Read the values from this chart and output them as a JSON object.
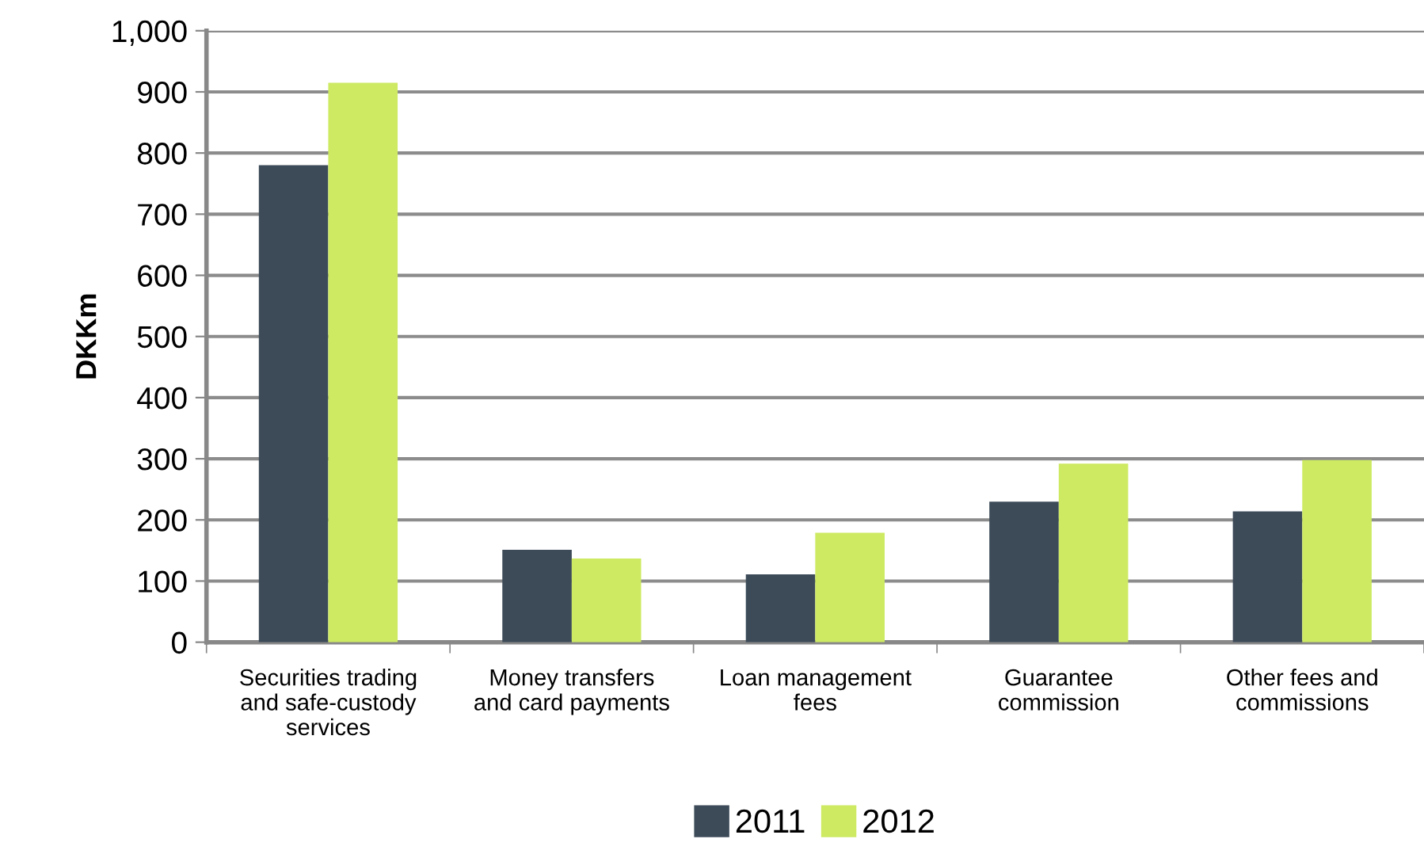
{
  "chart_data": {
    "type": "bar",
    "ylabel": "DKKm",
    "categories": [
      "Securities trading\nand safe-custody\nservices",
      "Money transfers\nand card payments",
      "Loan management\nfees",
      "Guarantee\ncommission",
      "Other fees and\ncommissions"
    ],
    "series": [
      {
        "name": "2011",
        "color": "#3d4b59",
        "values": [
          780,
          151,
          111,
          230,
          214
        ]
      },
      {
        "name": "2012",
        "color": "#cdea62",
        "values": [
          915,
          137,
          179,
          292,
          298
        ]
      }
    ],
    "ylim": [
      0,
      1000
    ],
    "yticks": [
      0,
      100,
      200,
      300,
      400,
      500,
      600,
      700,
      800,
      900,
      {
        "value": 1000,
        "label": "1,000"
      }
    ],
    "grid": "y",
    "legend": "bottom"
  }
}
